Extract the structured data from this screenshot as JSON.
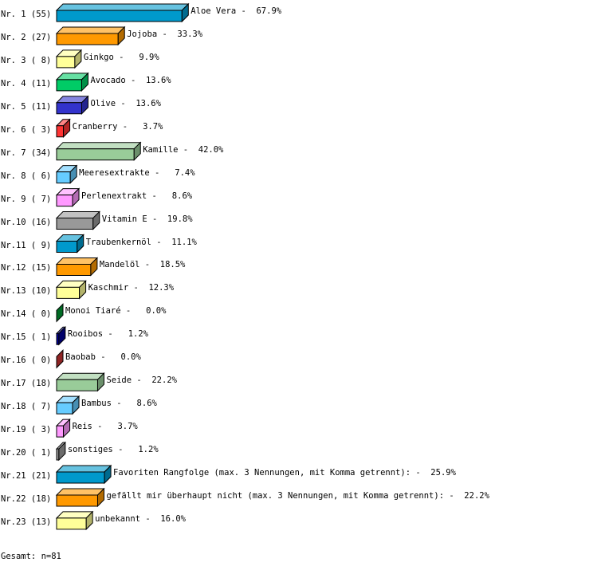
{
  "chart_data": {
    "type": "bar",
    "orientation": "horizontal",
    "style": "3d",
    "total_label": "Gesamt: n=81",
    "categories": [
      "Nr. 1",
      "Nr. 2",
      "Nr. 3",
      "Nr. 4",
      "Nr. 5",
      "Nr. 6",
      "Nr. 7",
      "Nr. 8",
      "Nr. 9",
      "Nr.10",
      "Nr.11",
      "Nr.12",
      "Nr.13",
      "Nr.14",
      "Nr.15",
      "Nr.16",
      "Nr.17",
      "Nr.18",
      "Nr.19",
      "Nr.20",
      "Nr.21",
      "Nr.22",
      "Nr.23"
    ],
    "counts": [
      55,
      27,
      8,
      11,
      11,
      3,
      34,
      6,
      7,
      16,
      9,
      15,
      10,
      0,
      1,
      0,
      18,
      7,
      3,
      1,
      21,
      18,
      13
    ],
    "names": [
      "Aloe Vera",
      "Jojoba",
      "Ginkgo",
      "Avocado",
      "Olive",
      "Cranberry",
      "Kamille",
      "Meeresextrakte",
      "Perlenextrakt",
      "Vitamin E",
      "Traubenkernöl",
      "Mandelöl",
      "Kaschmir",
      "Monoi Tiaré",
      "Rooibos",
      "Baobab",
      "Seide",
      "Bambus",
      "Reis",
      "sonstiges",
      "Favoriten Rangfolge (max. 3 Nennungen, mit Komma getrennt):",
      "gefällt mir überhaupt nicht (max. 3 Nennungen, mit Komma getrennt):",
      "unbekannt"
    ],
    "percents": [
      "67.9%",
      "33.3%",
      "9.9%",
      "13.6%",
      "13.6%",
      "3.7%",
      "42.0%",
      "7.4%",
      "8.6%",
      "19.8%",
      "11.1%",
      "18.5%",
      "12.3%",
      "0.0%",
      "1.2%",
      "0.0%",
      "22.2%",
      "8.6%",
      "3.7%",
      "1.2%",
      "25.9%",
      "22.2%",
      "16.0%"
    ],
    "colors": [
      "#0099cc",
      "#ff9900",
      "#ffff99",
      "#00cc66",
      "#3333cc",
      "#ff3333",
      "#99cc99",
      "#66ccff",
      "#ff99ff",
      "#999999",
      "#0099cc",
      "#ff9900",
      "#ffff99",
      "#009933",
      "#000099",
      "#cc3333",
      "#99cc99",
      "#66ccff",
      "#ff99ff",
      "#999999",
      "#0099cc",
      "#ff9900",
      "#ffff99"
    ]
  }
}
